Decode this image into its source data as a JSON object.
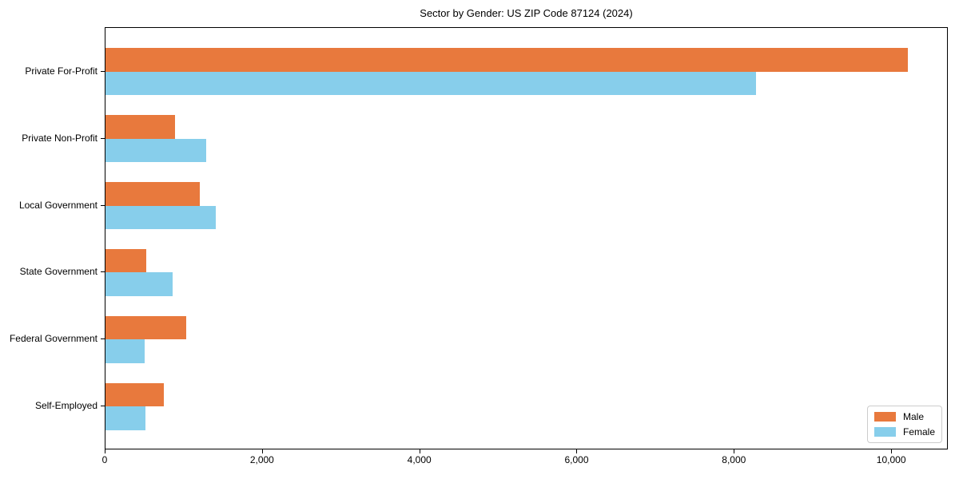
{
  "chart_data": {
    "type": "bar",
    "orientation": "horizontal",
    "title": "Sector by Gender: US ZIP Code 87124 (2024)",
    "xlabel": "",
    "ylabel": "",
    "categories": [
      "Private For-Profit",
      "Private Non-Profit",
      "Local Government",
      "State Government",
      "Federal Government",
      "Self-Employed"
    ],
    "series": [
      {
        "name": "Male",
        "color": "#e8793d",
        "values": [
          10200,
          880,
          1200,
          515,
          1030,
          745
        ]
      },
      {
        "name": "Female",
        "color": "#87ceeb",
        "values": [
          8270,
          1280,
          1400,
          855,
          500,
          505
        ]
      }
    ],
    "xlim": [
      0,
      10720
    ],
    "x_ticks": [
      0,
      2000,
      4000,
      6000,
      8000,
      10000
    ],
    "x_tick_labels": [
      "0",
      "2,000",
      "4,000",
      "6,000",
      "8,000",
      "10,000"
    ],
    "grid": false,
    "legend_position": "lower right",
    "colors": {
      "axis": "#000000",
      "legend_border": "#cccccc",
      "background": "#ffffff"
    }
  }
}
